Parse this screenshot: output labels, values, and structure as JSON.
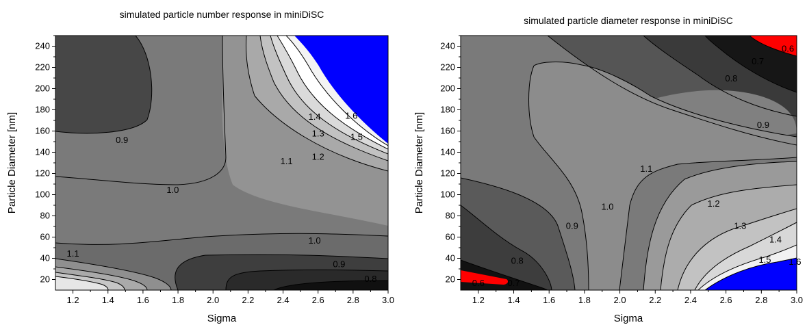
{
  "chart_data": [
    {
      "type": "contour",
      "title": "simulated particle number response in miniDiSC",
      "xlabel": "Sigma",
      "ylabel": "Particle Diameter [nm]",
      "xlim": [
        1.1,
        3.0
      ],
      "ylim": [
        10,
        250
      ],
      "xticks": [
        "1.2",
        "1.4",
        "1.6",
        "1.8",
        "2.0",
        "2.2",
        "2.4",
        "2.6",
        "2.8",
        "3.0"
      ],
      "yticks": [
        "20",
        "40",
        "60",
        "80",
        "100",
        "120",
        "140",
        "160",
        "180",
        "200",
        "220",
        "240"
      ],
      "contour_labels": [
        {
          "text": "0.9",
          "x": 1.48,
          "y": 152
        },
        {
          "text": "1.0",
          "x": 1.77,
          "y": 105
        },
        {
          "text": "1.1",
          "x": 1.2,
          "y": 45
        },
        {
          "text": "1.1",
          "x": 2.42,
          "y": 132
        },
        {
          "text": "1.2",
          "x": 2.6,
          "y": 136
        },
        {
          "text": "1.3",
          "x": 2.6,
          "y": 158
        },
        {
          "text": "1.4",
          "x": 2.58,
          "y": 174
        },
        {
          "text": "1.5",
          "x": 2.82,
          "y": 155
        },
        {
          "text": "1.6",
          "x": 2.79,
          "y": 175
        },
        {
          "text": "1.0",
          "x": 2.58,
          "y": 57
        },
        {
          "text": "0.9",
          "x": 2.72,
          "y": 35
        },
        {
          "text": "0.8",
          "x": 2.9,
          "y": 21
        }
      ]
    },
    {
      "type": "contour",
      "title": "simulated particle diameter response in miniDiSC",
      "xlabel": "Sigma",
      "ylabel": "Particle Diameter [nm]",
      "xlim": [
        1.1,
        3.0
      ],
      "ylim": [
        10,
        250
      ],
      "xticks": [
        "1.2",
        "1.4",
        "1.6",
        "1.8",
        "2.0",
        "2.2",
        "2.4",
        "2.6",
        "2.8",
        "3.0"
      ],
      "yticks": [
        "20",
        "40",
        "60",
        "80",
        "100",
        "120",
        "140",
        "160",
        "180",
        "200",
        "220",
        "240"
      ],
      "contour_labels": [
        {
          "text": "0.6",
          "x": 1.2,
          "y": 17
        },
        {
          "text": "0.7",
          "x": 1.4,
          "y": 17
        },
        {
          "text": "0.8",
          "x": 1.42,
          "y": 38
        },
        {
          "text": "0.9",
          "x": 1.73,
          "y": 71
        },
        {
          "text": "1.0",
          "x": 1.93,
          "y": 89
        },
        {
          "text": "1.1",
          "x": 2.15,
          "y": 125
        },
        {
          "text": "1.2",
          "x": 2.53,
          "y": 92
        },
        {
          "text": "1.3",
          "x": 2.68,
          "y": 71
        },
        {
          "text": "1.4",
          "x": 2.88,
          "y": 58
        },
        {
          "text": "1.5",
          "x": 2.82,
          "y": 39
        },
        {
          "text": "1.6",
          "x": 2.99,
          "y": 37
        },
        {
          "text": "0.9",
          "x": 2.81,
          "y": 166
        },
        {
          "text": "0.8",
          "x": 2.63,
          "y": 210
        },
        {
          "text": "0.7",
          "x": 2.78,
          "y": 226
        },
        {
          "text": "0.6",
          "x": 2.95,
          "y": 238
        }
      ]
    }
  ]
}
